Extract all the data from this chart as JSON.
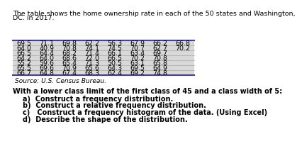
{
  "title_line1": "The table shows the home ownership rate in each of the 50 states and Washington,",
  "title_line2": "DC. in 2017.",
  "table_data": [
    [
      "69.5",
      "71.1",
      "69.8",
      "62.2",
      "56.3",
      "67.9",
      "66.2",
      "66.8"
    ],
    [
      "64.0",
      "40.9",
      "70.8",
      "74.1",
      "74.5",
      "70.7",
      "62.7",
      "70.2"
    ],
    [
      "66.5",
      "64.4",
      "68.2",
      "71.4",
      "66.1",
      "63.4",
      "69.7",
      ""
    ],
    [
      "64.2",
      "64.0",
      "68.6",
      "72.0",
      "66.5",
      "70.2",
      "70.8",
      ""
    ],
    [
      "55.2",
      "59.6",
      "65.4",
      "71.3",
      "50.5",
      "63.1",
      "65.8",
      ""
    ],
    [
      "65.5",
      "69.6",
      "70.9",
      "65.6",
      "64.3",
      "69.5",
      "64.9",
      ""
    ],
    [
      "66.7",
      "64.8",
      "67.4",
      "68.3",
      "62.4",
      "69.2",
      "74.8",
      ""
    ]
  ],
  "source": "Source: U.S. Census Bureau.",
  "question_bold": "With a lower class limit of the first class of 45 and a class width of 5:",
  "questions": [
    "a)  Construct a frequency distribution.",
    "b)  Construct a relative frequency distribution.",
    "c)   Construct a frequency histogram of the data. (Using Excel)",
    "d)  Describe the shape of the distribution."
  ],
  "table_bg": "#d8d8d8",
  "table_line_color": "#aaaaaa",
  "top_line_color": "#4040a0",
  "bottom_line_color": "#4040a0",
  "text_color": "#000000",
  "font_size_title": 6.8,
  "font_size_table": 6.8,
  "font_size_question": 7.0,
  "font_size_source": 6.5,
  "n_cols": 8,
  "n_rows": 7
}
